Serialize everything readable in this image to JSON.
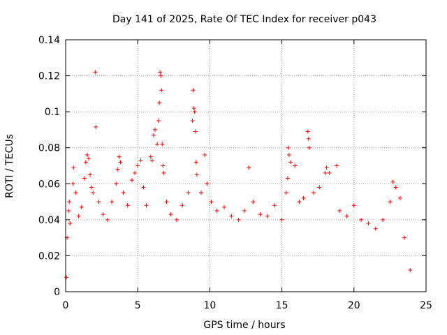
{
  "chart_data": {
    "type": "scatter",
    "title": "Day 141 of 2025, Rate Of TEC Index for receiver p043",
    "xlabel": "GPS time / hours",
    "ylabel": "ROTI / TECUs",
    "xlim": [
      0,
      25
    ],
    "ylim": [
      0,
      0.14
    ],
    "x_ticks": [
      0,
      5,
      10,
      15,
      20,
      25
    ],
    "x_tick_labels": [
      "0",
      "5",
      "10",
      "15",
      "20",
      "25"
    ],
    "y_ticks": [
      0,
      0.02,
      0.04,
      0.06,
      0.08,
      0.1,
      0.12,
      0.14
    ],
    "y_tick_labels": [
      "0",
      "0.02",
      "0.04",
      "0.06",
      "0.08",
      "0.1",
      "0.12",
      "0.14"
    ],
    "grid": true,
    "legend": "none",
    "marker": "plus",
    "color": "#ff0000",
    "series": [
      {
        "values_note": "",
        "points": [
          [
            0.05,
            0.008
          ],
          [
            0.1,
            0.03
          ],
          [
            0.2,
            0.045
          ],
          [
            0.25,
            0.05
          ],
          [
            0.3,
            0.038
          ],
          [
            0.5,
            0.06
          ],
          [
            0.55,
            0.069
          ],
          [
            0.7,
            0.055
          ],
          [
            0.9,
            0.042
          ],
          [
            1.1,
            0.047
          ],
          [
            1.3,
            0.063
          ],
          [
            1.4,
            0.072
          ],
          [
            1.5,
            0.076
          ],
          [
            1.6,
            0.074
          ],
          [
            1.7,
            0.065
          ],
          [
            1.8,
            0.058
          ],
          [
            1.9,
            0.055
          ],
          [
            2.05,
            0.122
          ],
          [
            2.1,
            0.0915
          ],
          [
            2.3,
            0.05
          ],
          [
            2.6,
            0.043
          ],
          [
            2.9,
            0.04
          ],
          [
            3.2,
            0.05
          ],
          [
            3.5,
            0.06
          ],
          [
            3.6,
            0.068
          ],
          [
            3.7,
            0.075
          ],
          [
            3.8,
            0.072
          ],
          [
            4.0,
            0.055
          ],
          [
            4.3,
            0.048
          ],
          [
            4.6,
            0.062
          ],
          [
            4.8,
            0.066
          ],
          [
            5.0,
            0.07
          ],
          [
            5.2,
            0.073
          ],
          [
            5.4,
            0.058
          ],
          [
            5.6,
            0.048
          ],
          [
            5.9,
            0.075
          ],
          [
            6.0,
            0.073
          ],
          [
            6.1,
            0.087
          ],
          [
            6.2,
            0.09
          ],
          [
            6.35,
            0.082
          ],
          [
            6.45,
            0.095
          ],
          [
            6.5,
            0.105
          ],
          [
            6.55,
            0.122
          ],
          [
            6.6,
            0.12
          ],
          [
            6.65,
            0.112
          ],
          [
            6.7,
            0.082
          ],
          [
            6.75,
            0.07
          ],
          [
            6.8,
            0.066
          ],
          [
            7.0,
            0.05
          ],
          [
            7.3,
            0.043
          ],
          [
            7.7,
            0.04
          ],
          [
            8.1,
            0.048
          ],
          [
            8.5,
            0.055
          ],
          [
            8.8,
            0.095
          ],
          [
            8.85,
            0.112
          ],
          [
            8.9,
            0.102
          ],
          [
            8.95,
            0.1
          ],
          [
            9.0,
            0.089
          ],
          [
            9.05,
            0.072
          ],
          [
            9.1,
            0.065
          ],
          [
            9.4,
            0.055
          ],
          [
            9.65,
            0.076
          ],
          [
            9.8,
            0.06
          ],
          [
            10.1,
            0.05
          ],
          [
            10.5,
            0.045
          ],
          [
            11.0,
            0.047
          ],
          [
            11.5,
            0.042
          ],
          [
            12.0,
            0.04
          ],
          [
            12.4,
            0.045
          ],
          [
            12.7,
            0.069
          ],
          [
            13.0,
            0.05
          ],
          [
            13.5,
            0.043
          ],
          [
            14.0,
            0.042
          ],
          [
            14.5,
            0.048
          ],
          [
            15.0,
            0.04
          ],
          [
            15.3,
            0.055
          ],
          [
            15.4,
            0.063
          ],
          [
            15.45,
            0.08
          ],
          [
            15.5,
            0.076
          ],
          [
            15.6,
            0.072
          ],
          [
            15.9,
            0.07
          ],
          [
            16.2,
            0.05
          ],
          [
            16.5,
            0.052
          ],
          [
            16.8,
            0.089
          ],
          [
            16.85,
            0.085
          ],
          [
            16.9,
            0.08
          ],
          [
            17.2,
            0.055
          ],
          [
            17.6,
            0.058
          ],
          [
            18.0,
            0.066
          ],
          [
            18.1,
            0.069
          ],
          [
            18.3,
            0.066
          ],
          [
            18.8,
            0.07
          ],
          [
            19.0,
            0.045
          ],
          [
            19.5,
            0.042
          ],
          [
            20.0,
            0.048
          ],
          [
            20.5,
            0.04
          ],
          [
            21.0,
            0.038
          ],
          [
            21.5,
            0.035
          ],
          [
            22.0,
            0.04
          ],
          [
            22.5,
            0.05
          ],
          [
            22.7,
            0.061
          ],
          [
            22.9,
            0.058
          ],
          [
            23.2,
            0.052
          ],
          [
            23.5,
            0.03
          ],
          [
            23.9,
            0.012
          ]
        ]
      }
    ]
  }
}
